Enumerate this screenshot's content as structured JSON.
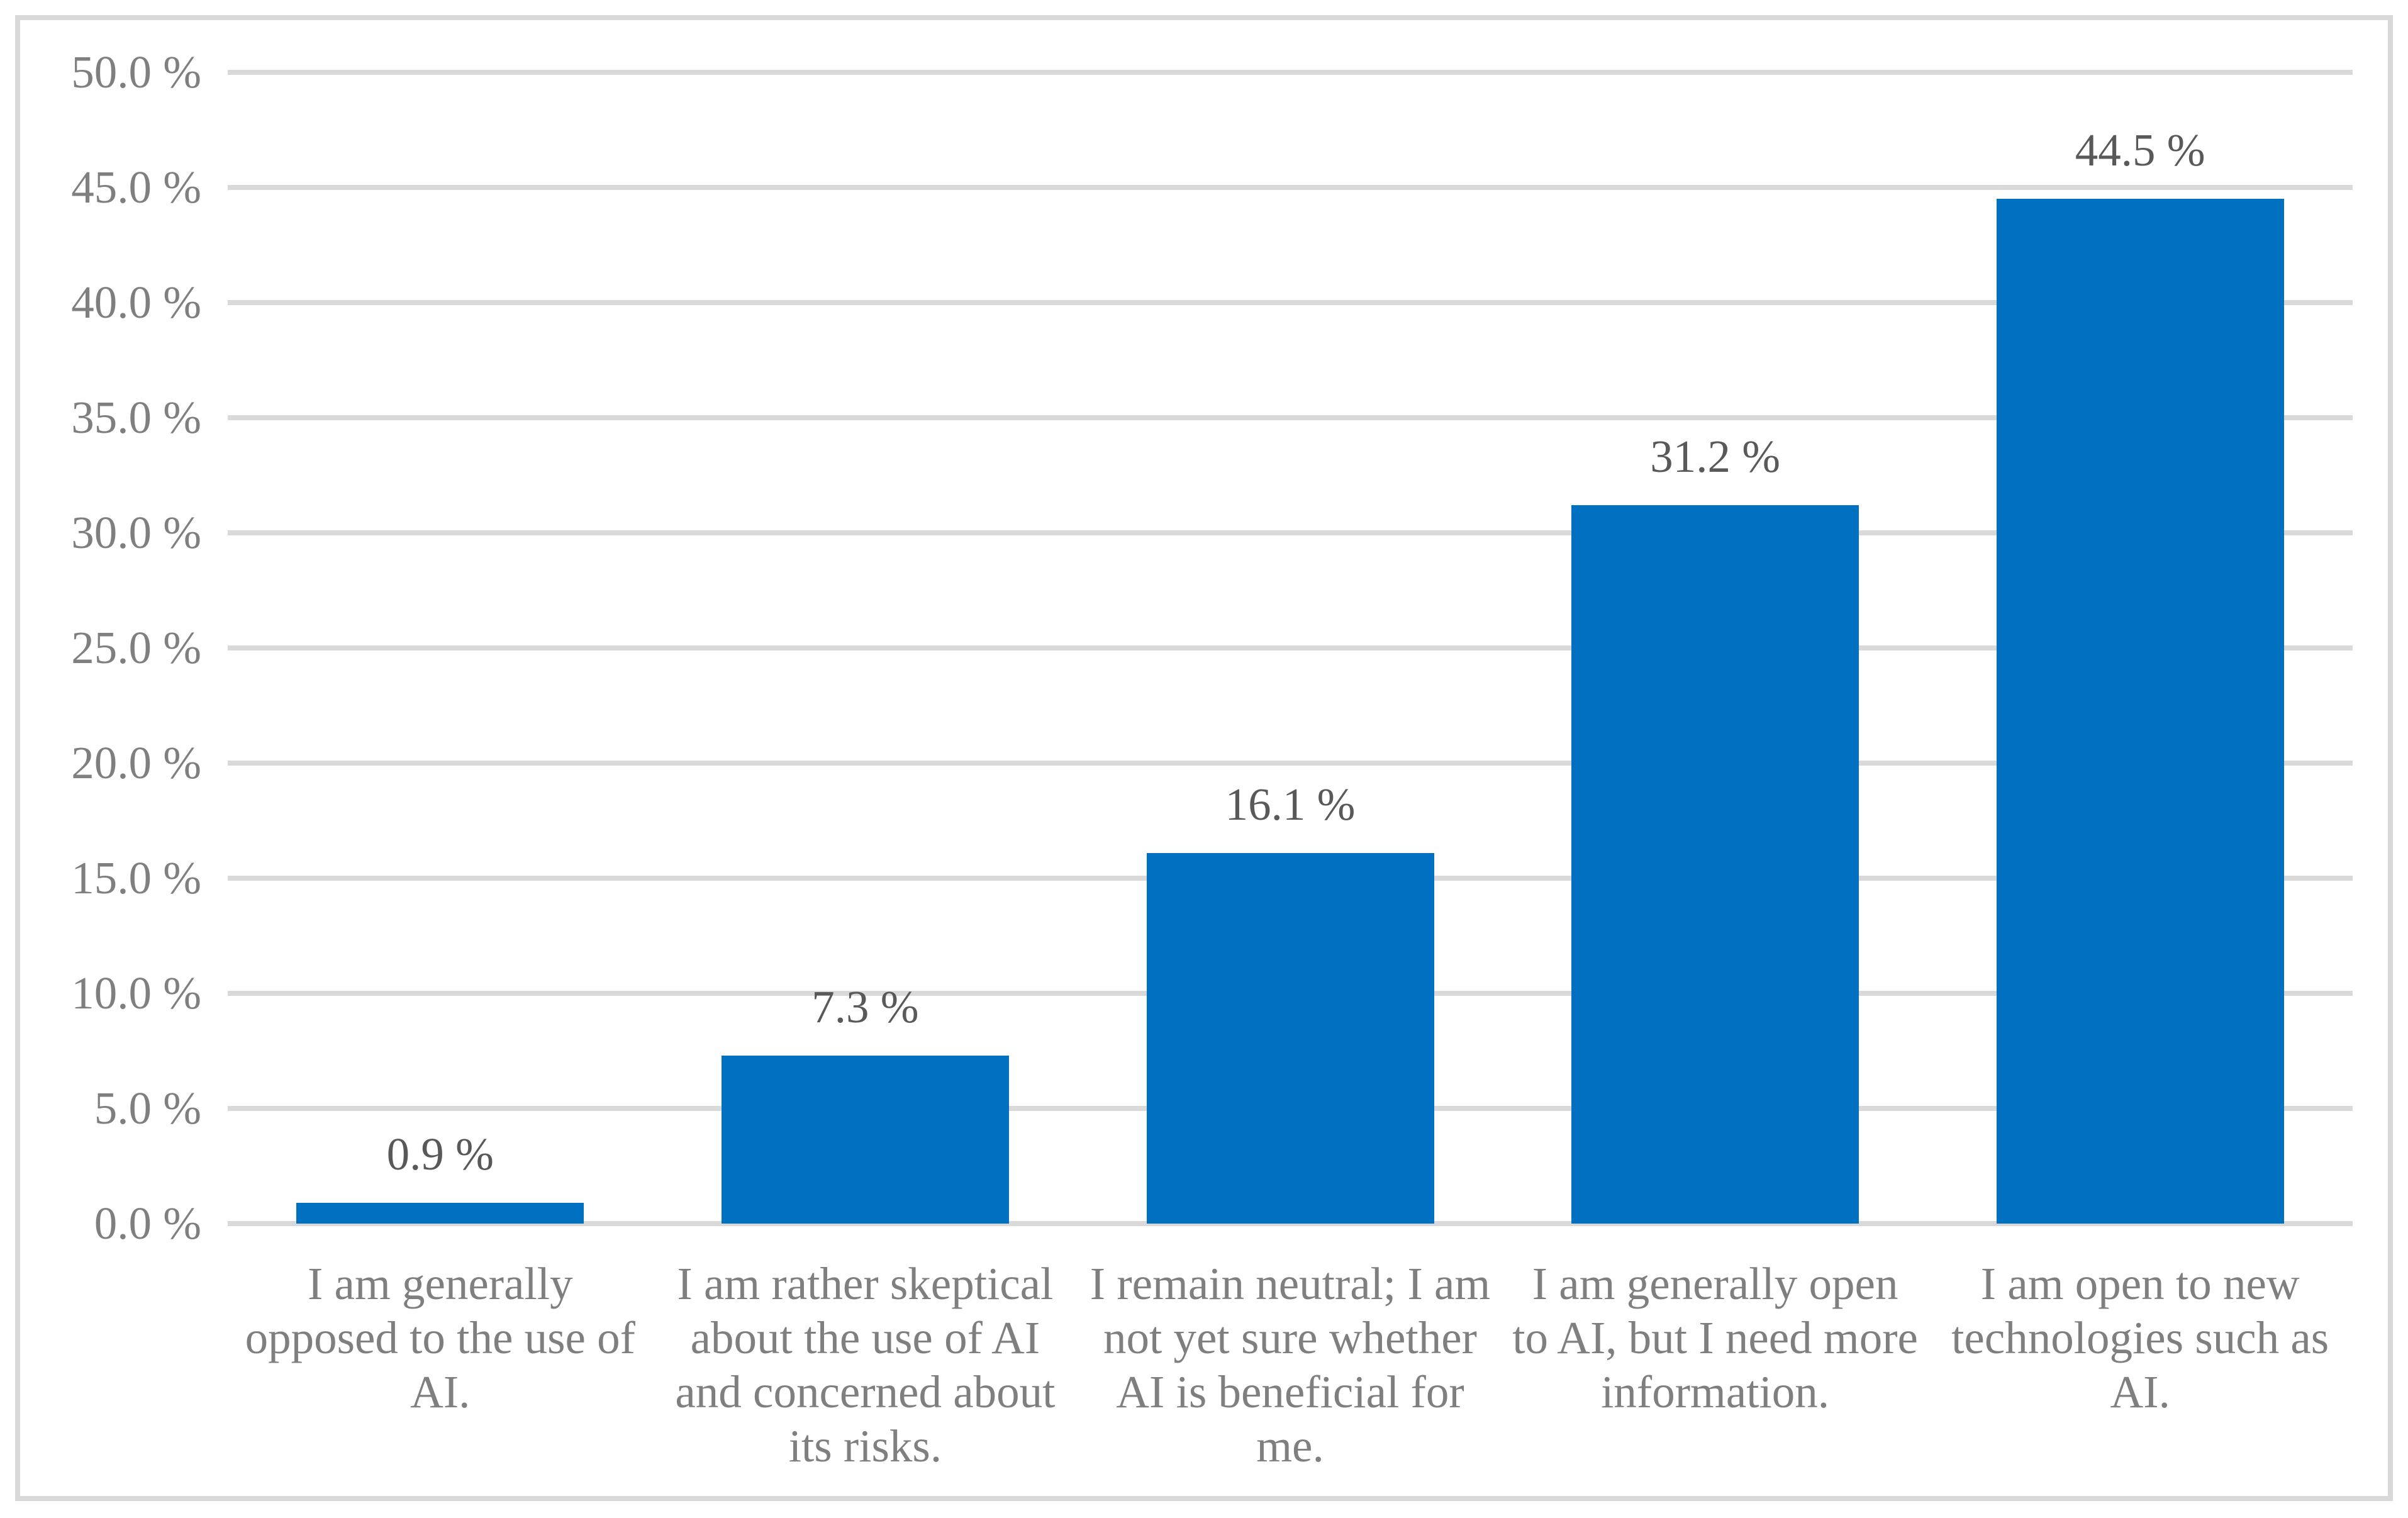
{
  "chart_data": {
    "type": "bar",
    "title": "",
    "xlabel": "",
    "ylabel": "",
    "ylim": [
      0,
      50
    ],
    "grid": true,
    "legend": "none",
    "y_tick_step": 5,
    "y_ticks": [
      "50.0 %",
      "45.0 %",
      "40.0 %",
      "35.0 %",
      "30.0 %",
      "25.0 %",
      "20.0 %",
      "15.0 %",
      "10.0 %",
      "5.0 %",
      "0.0 %"
    ],
    "categories": [
      "I am generally\nopposed to the use of\nAI.",
      "I am rather skeptical\nabout the use of AI\nand concerned about\nits risks.",
      "I remain neutral; I am\nnot yet sure whether\nAI is beneficial for\nme.",
      "I am generally open\nto AI, but I need more\ninformation.",
      "I am open to new\ntechnologies such as\nAI."
    ],
    "values": [
      0.9,
      7.3,
      16.1,
      31.2,
      44.5
    ],
    "value_labels": [
      "0.9 %",
      "7.3 %",
      "16.1 %",
      "31.2 %",
      "44.5 %"
    ],
    "colors": {
      "bar": "#0070C0",
      "gridline": "#D9D9D9",
      "frame": "#D9D9D9",
      "tick_text": "#7F7F7F",
      "category_text": "#7F7F7F",
      "data_label_text": "#595959",
      "background": "#FFFFFF"
    }
  }
}
